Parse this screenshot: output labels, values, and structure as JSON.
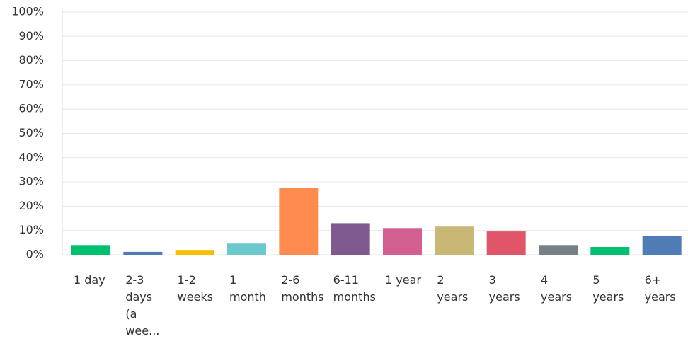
{
  "chart_data": {
    "type": "bar",
    "categories": [
      "1 day",
      "2-3 days (a wee...",
      "1-2 weeks",
      "1 month",
      "2-6 months",
      "6-11 months",
      "1 year",
      "2 years",
      "3 years",
      "4 years",
      "5 years",
      "6+ years"
    ],
    "values": [
      4.0,
      1.2,
      2.0,
      4.6,
      27.5,
      13.0,
      11.0,
      11.6,
      9.6,
      4.0,
      3.2,
      7.8
    ],
    "colors": [
      "#00bf6f",
      "#507cb6",
      "#f9be00",
      "#6bc8cd",
      "#ff8b4f",
      "#7f5a91",
      "#d25f90",
      "#c9b776",
      "#e05567",
      "#768086",
      "#00bf6f",
      "#507cb6"
    ],
    "ylim": [
      0,
      100
    ],
    "yticks": [
      {
        "value": 0,
        "label": "0%"
      },
      {
        "value": 10,
        "label": "10%"
      },
      {
        "value": 20,
        "label": "20%"
      },
      {
        "value": 30,
        "label": "30%"
      },
      {
        "value": 40,
        "label": "40%"
      },
      {
        "value": 50,
        "label": "50%"
      },
      {
        "value": 60,
        "label": "60%"
      },
      {
        "value": 70,
        "label": "70%"
      },
      {
        "value": 80,
        "label": "80%"
      },
      {
        "value": 90,
        "label": "90%"
      },
      {
        "value": 100,
        "label": "100%"
      }
    ],
    "grid": true
  }
}
